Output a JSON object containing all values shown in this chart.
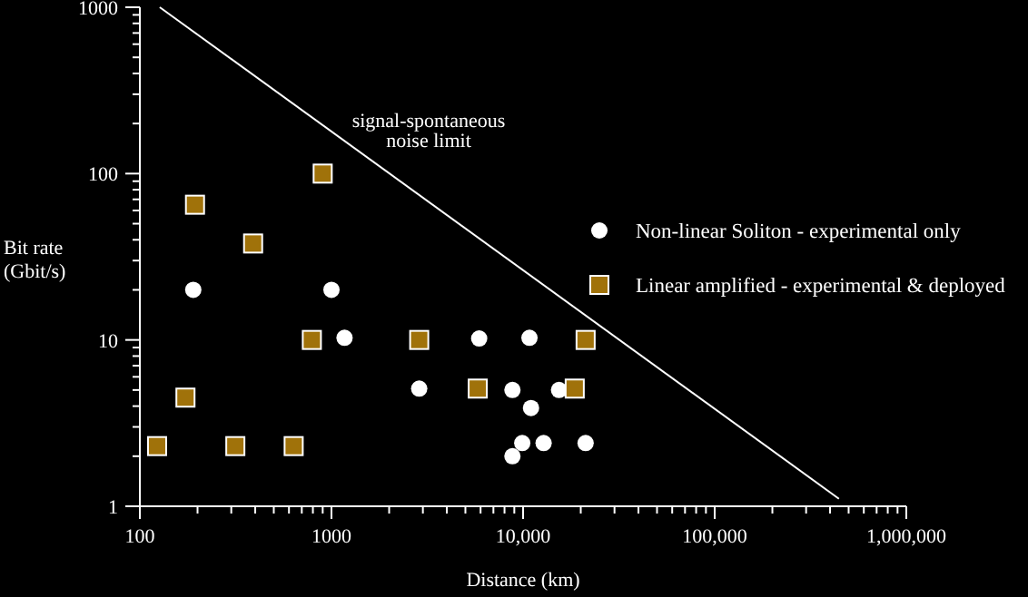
{
  "chart_data": {
    "type": "scatter",
    "xlabel": "Distance (km)",
    "ylabel": "Bit rate\n(Gbit/s)",
    "log": "xy",
    "xlim": [
      100,
      1000000
    ],
    "ylim": [
      1,
      1000
    ],
    "xticks": [
      100,
      1000,
      {
        "value": 10000,
        "label": "10,000"
      },
      {
        "value": 100000,
        "label": "100,000"
      },
      {
        "value": 1000000,
        "label": "1,000,000"
      }
    ],
    "yticks": [
      1,
      10,
      100,
      1000
    ],
    "legend": "right",
    "grid": false,
    "series": [
      {
        "name": "Non-linear Soliton - experimental only",
        "color": "#ffffff",
        "marker": "circle",
        "x": [
          190,
          1000,
          1170,
          5900,
          10800,
          2870,
          8800,
          15400,
          11000,
          9900,
          12800,
          21200,
          8800
        ],
        "values": [
          20,
          20,
          10.3,
          10.2,
          10.3,
          5.1,
          5,
          5,
          3.9,
          2.4,
          2.4,
          2.4,
          2
        ]
      },
      {
        "name": "Linear amplified - experimental & deployed",
        "color": "#a0720a",
        "marker": "square",
        "x": [
          900,
          194,
          390,
          790,
          2870,
          21200,
          173,
          5800,
          18600,
          123,
          315,
          635
        ],
        "values": [
          100,
          65,
          38,
          10,
          10,
          10,
          4.5,
          5.1,
          5.1,
          2.3,
          2.3,
          2.3
        ]
      },
      {
        "type": "line",
        "color": "#ffffff",
        "x": [
          127,
          445000
        ],
        "values": [
          1000,
          1.11
        ]
      }
    ],
    "annotations": [
      "signal-spontaneous\nnoise limit"
    ]
  }
}
